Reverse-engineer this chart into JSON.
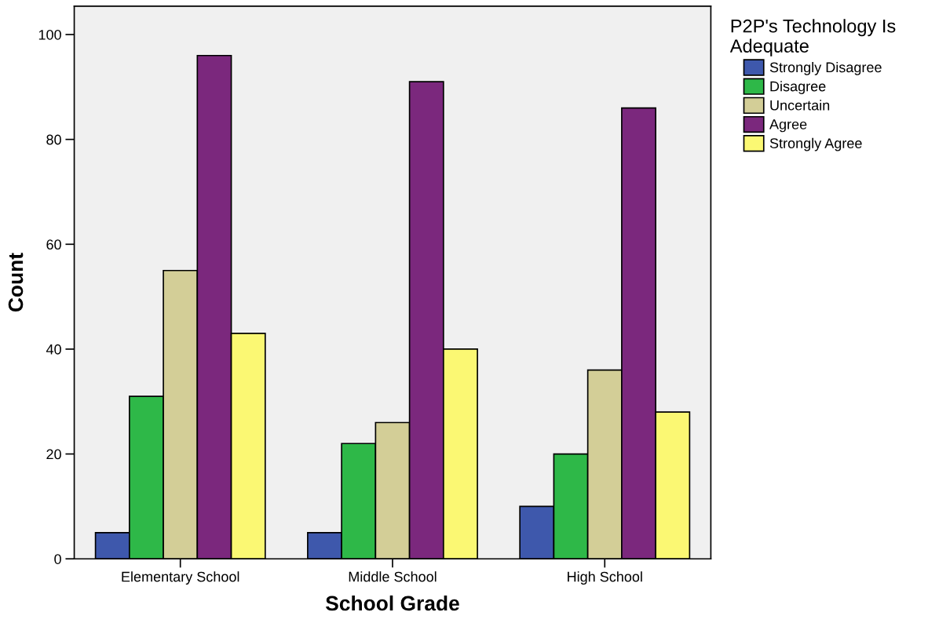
{
  "chart_data": {
    "type": "bar",
    "xlabel": "School Grade",
    "ylabel": "Count",
    "legend_title": "P2P's Technology Is\nAdequate",
    "categories": [
      "Elementary School",
      "Middle School",
      "High School"
    ],
    "series": [
      {
        "name": "Strongly Disagree",
        "color": "#3e58ac",
        "values": [
          5,
          5,
          10
        ]
      },
      {
        "name": "Disagree",
        "color": "#2eb848",
        "values": [
          31,
          22,
          20
        ]
      },
      {
        "name": "Uncertain",
        "color": "#d3ce97",
        "values": [
          55,
          26,
          36
        ]
      },
      {
        "name": "Agree",
        "color": "#7b287d",
        "values": [
          96,
          91,
          86
        ]
      },
      {
        "name": "Strongly Agree",
        "color": "#fbf873",
        "values": [
          43,
          40,
          28
        ]
      }
    ],
    "ylim": [
      0,
      105.4
    ],
    "yticks": [
      0,
      20,
      40,
      60,
      80,
      100
    ],
    "grid": false,
    "legend": "right"
  }
}
